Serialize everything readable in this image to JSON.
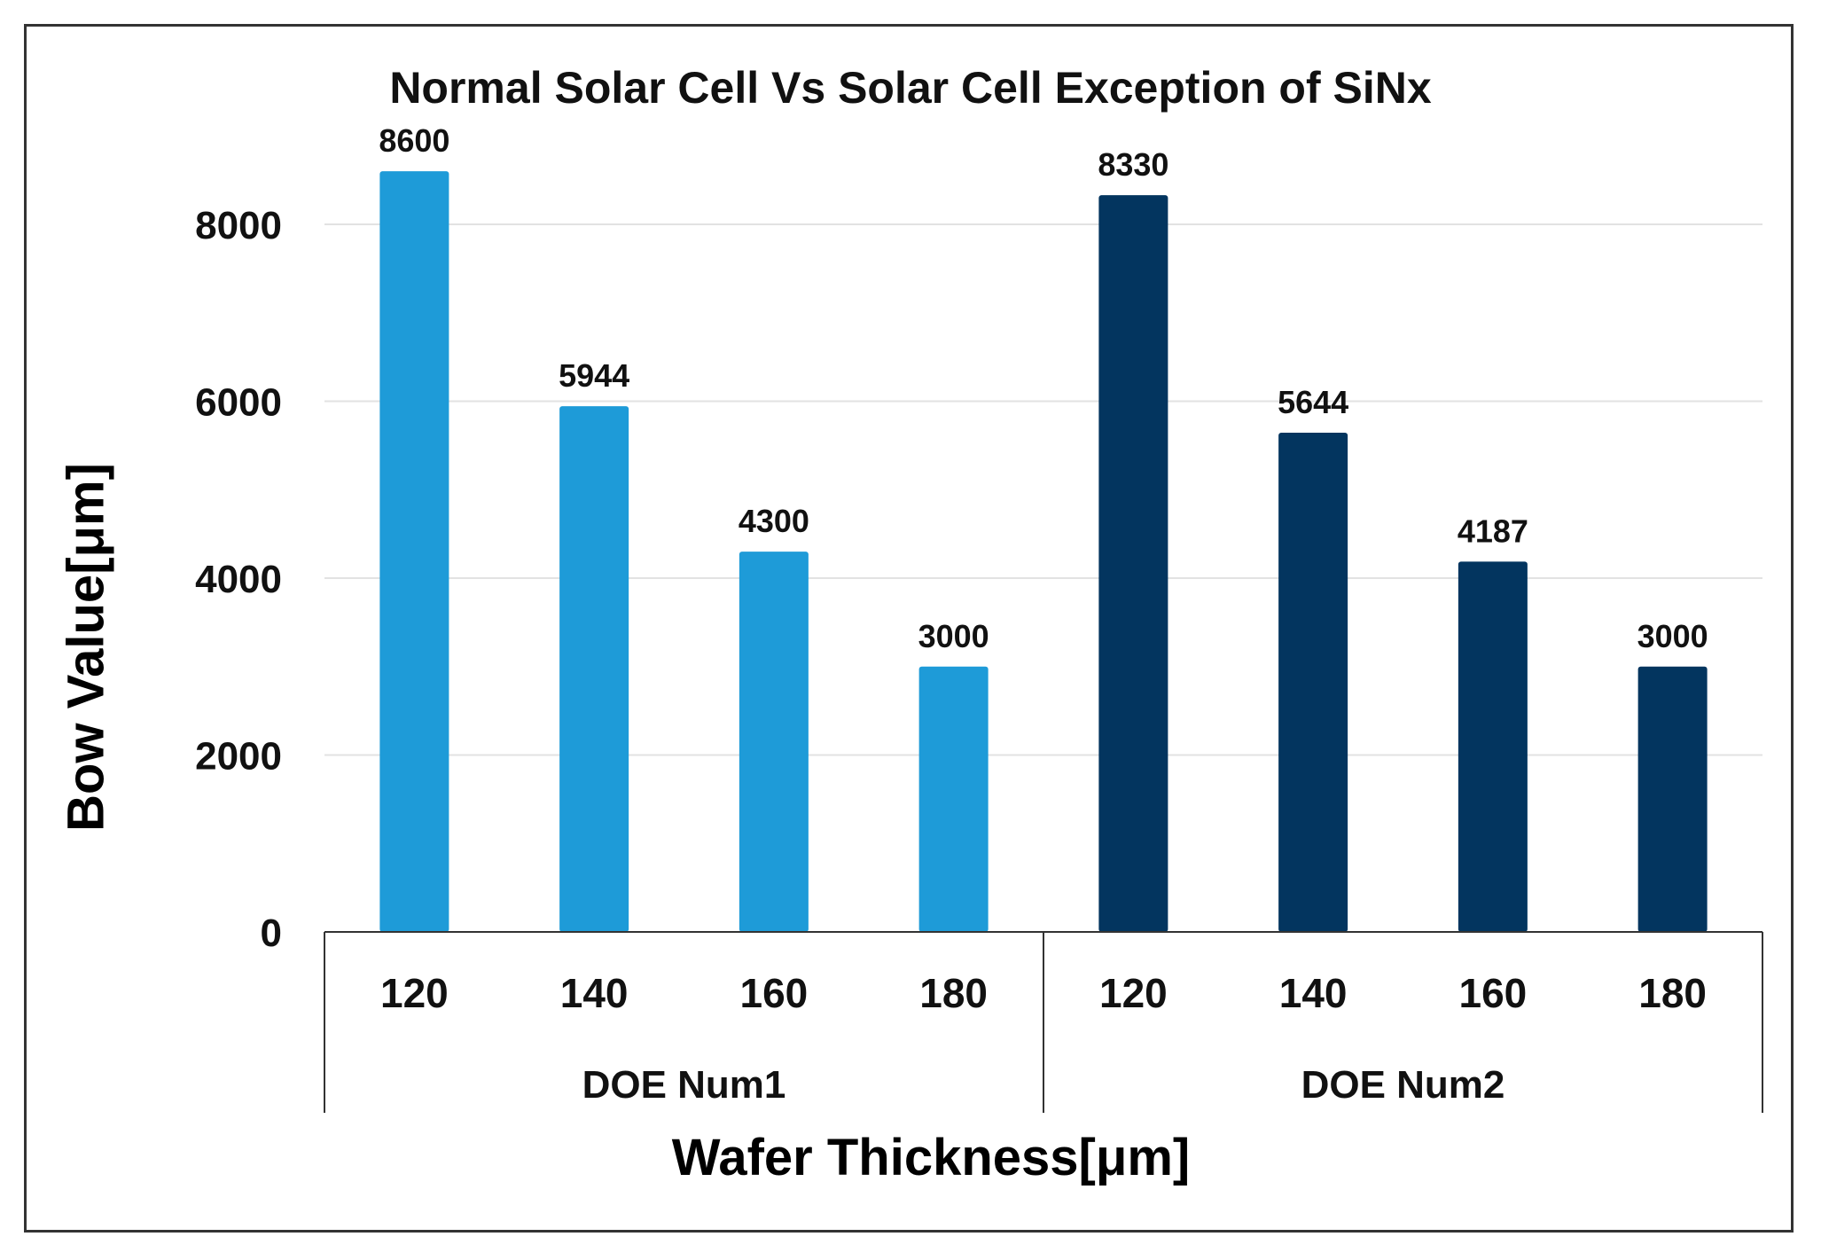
{
  "chart_data": {
    "type": "bar",
    "title": "Normal Solar Cell Vs Solar Cell Exception of SiNx",
    "xlabel": "Wafer Thickness[μm]",
    "ylabel": "Bow Value[μm]",
    "ylim": [
      0,
      9000
    ],
    "yticks": [
      0,
      2000,
      4000,
      6000,
      8000
    ],
    "grid": true,
    "legend": "none",
    "groups": [
      {
        "name": "DOE Num1",
        "color": "#1E9BD8",
        "categories": [
          "120",
          "140",
          "160",
          "180"
        ],
        "values": [
          8600,
          5944,
          4300,
          3000
        ],
        "labels": [
          "8600",
          "5944",
          "4300",
          "3000"
        ]
      },
      {
        "name": "DOE Num2",
        "color": "#03355F",
        "categories": [
          "120",
          "140",
          "160",
          "180"
        ],
        "values": [
          8330,
          5644,
          4187,
          3000
        ],
        "labels": [
          "8330",
          "5644",
          "4187",
          "3000"
        ]
      }
    ]
  }
}
